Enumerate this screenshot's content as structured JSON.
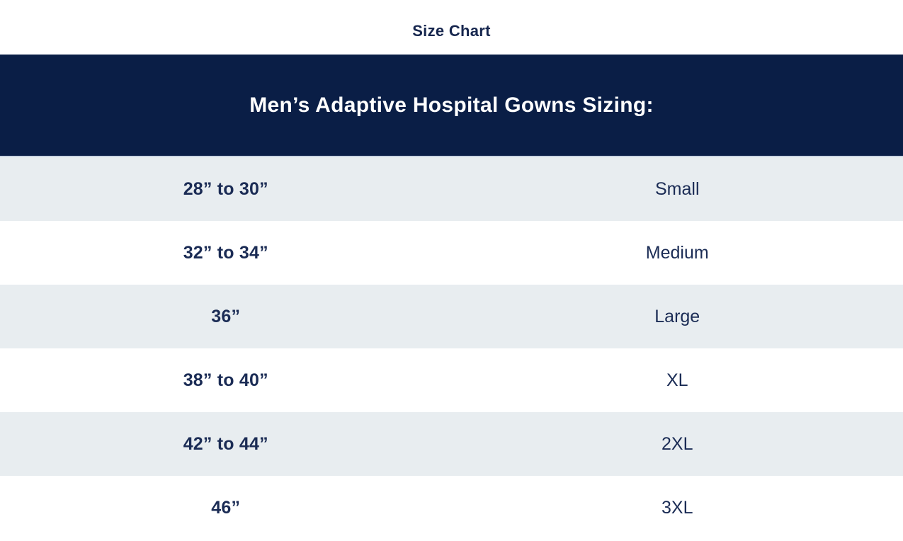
{
  "section": {
    "title": "Size Chart"
  },
  "size_chart": {
    "heading": "Men’s Adaptive Hospital Gowns Sizing:",
    "rows": [
      {
        "chest": "28” to 30”",
        "size": "Small"
      },
      {
        "chest": "32” to 34”",
        "size": "Medium"
      },
      {
        "chest": "36”",
        "size": "Large"
      },
      {
        "chest": "38” to 40”",
        "size": "XL"
      },
      {
        "chest": "42” to 44”",
        "size": "2XL"
      },
      {
        "chest": "46”",
        "size": "3XL"
      }
    ]
  },
  "colors": {
    "page_bg": "#ffffff",
    "title_text": "#16264e",
    "header_bg": "#0a1e46",
    "header_text": "#ffffff",
    "header_divider": "#ccd6e3",
    "row_bg": "#ffffff",
    "row_alt_bg": "#e8edf0",
    "cell_text": "#1b2c55"
  }
}
